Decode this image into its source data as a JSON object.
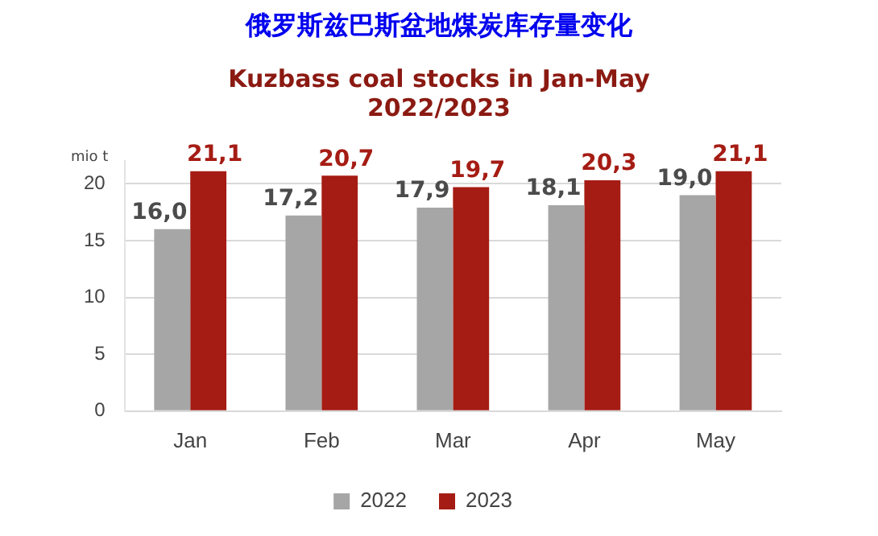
{
  "chart_data": {
    "type": "bar",
    "title": "俄罗斯兹巴斯盆地煤炭库存量变化",
    "subtitle": "Kuzbass coal stocks in Jan-May\n2022/2023",
    "ylabel": "mio t",
    "categories": [
      "Jan",
      "Feb",
      "Mar",
      "Apr",
      "May"
    ],
    "series": [
      {
        "name": "2022",
        "color": "#a6a6a6",
        "values": [
          16.0,
          17.2,
          17.9,
          18.1,
          19.0
        ],
        "value_labels": [
          "16,0",
          "17,2",
          "17,9",
          "18,1",
          "19,0"
        ]
      },
      {
        "name": "2023",
        "color": "#a51c14",
        "values": [
          21.1,
          20.7,
          19.7,
          20.3,
          21.1
        ],
        "value_labels": [
          "21,1",
          "20,7",
          "19,7",
          "20,3",
          "21,1"
        ]
      }
    ],
    "ylim": [
      0,
      22
    ],
    "yticks": [
      0,
      5,
      10,
      15,
      20
    ],
    "grid": "y",
    "legend": "bottom"
  }
}
